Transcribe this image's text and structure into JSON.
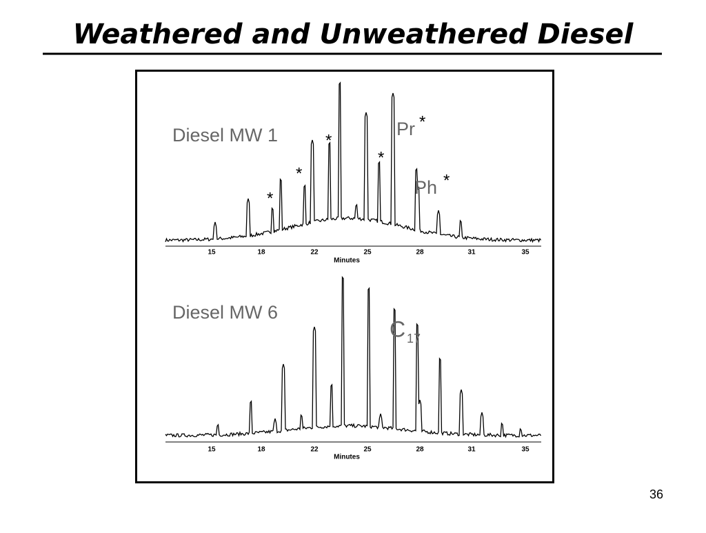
{
  "title": "Weathered and Unweathered Diesel",
  "panels": [
    {
      "label": "Diesel MW 1",
      "marker": "*",
      "peak_labels": [
        "Pr",
        "Ph"
      ],
      "axis_ticks": [
        "15",
        "18",
        "22",
        "25",
        "28",
        "31",
        "35"
      ],
      "axis_label": "Minutes"
    },
    {
      "label": "Diesel MW 6",
      "peak_label": {
        "text": "C",
        "subscript": "17"
      },
      "axis_ticks": [
        "15",
        "18",
        "22",
        "25",
        "28",
        "31",
        "35"
      ],
      "axis_label": "Minutes"
    }
  ],
  "page_number": "36"
}
